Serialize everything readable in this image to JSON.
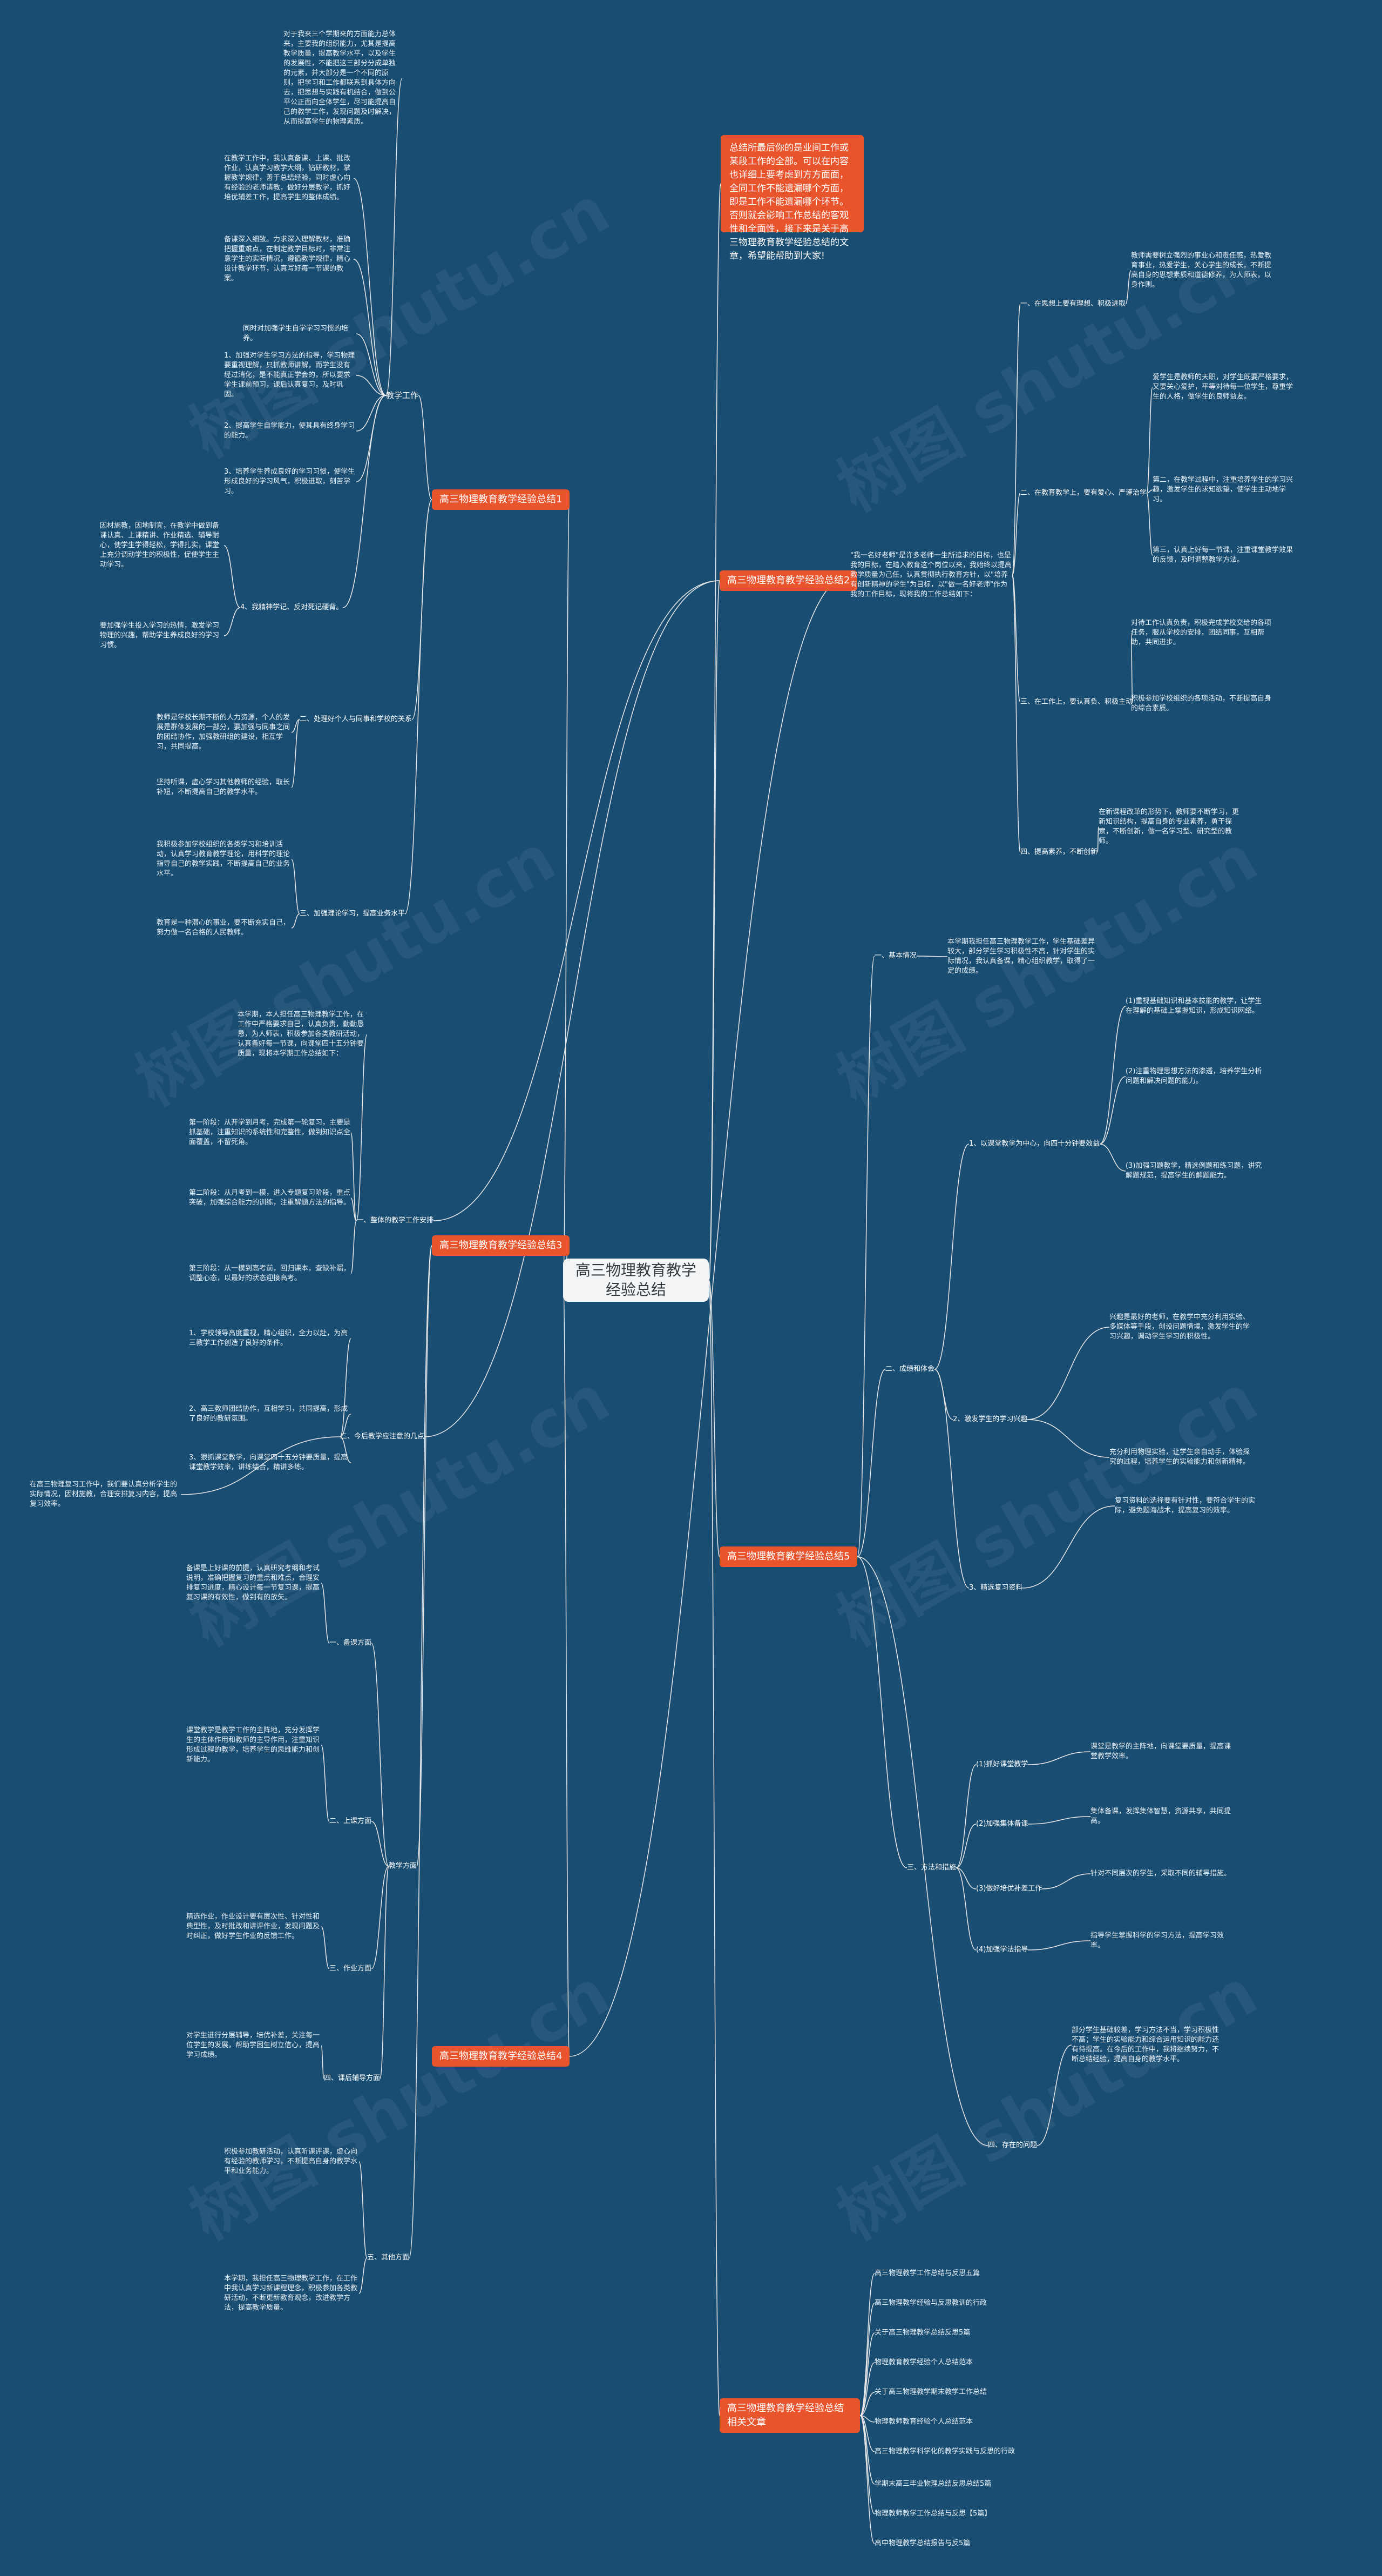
{
  "root": "高三物理教育教学经验总结",
  "watermark": "树图 shutu.cn",
  "callout": "总结所最后你的是业间工作或某段工作的全部。可以在内容也详细上要考虑到方方面面，全同工作不能遗漏哪个方面，即是工作不能遗漏哪个环节。否则就会影响工作总结的客观性和全面性，接下来是关于高三物理教育教学经验总结的文章，希望能帮助到大家!",
  "branches": {
    "b1": "高三物理教育教学经验总结1",
    "b2": "高三物理教育教学经验总结2",
    "b3": "高三物理教育教学经验总结3",
    "b4": "高三物理教育教学经验总结4",
    "b5": "高三物理教育教学经验总结5",
    "b6": "高三物理教育教学经验总结相关文章"
  },
  "b1": {
    "main": "教学工作",
    "intro": "对于我来三个学期来的方面能力总体来，主要我的组织能力，尤其是提高教学质量，提高教学水平，以及学生的发展性，不能把这三部分分成单独的元素，并大部分是一个不同的原则，把学习和工作都联系到具体方向去，把思想与实践有机结合，做到公平公正面向全体学生，尽可能提高自己的教学工作，发现问题及时解决，从而提高学生的物理素质。",
    "para2": "在教学工作中，我认真备课、上课、批改作业，认真学习教学大纲，钻研教材，掌握教学规律，善于总结经验，同时虚心向有经验的老师请教，做好分层教学，抓好培优辅差工作，提高学生的整体成绩。",
    "para3": "备课深入细致。力求深入理解教材，准确把握重难点，在制定教学目标时，非常注意学生的实际情况，遵循教学规律，精心设计教学环节，认真写好每一节课的教案。",
    "title": "同时对加强学生自学学习习惯的培养。",
    "item1": "1、加强对学生学习方法的指导，学习物理要重视理解，只抓教师讲解，而学生没有经过消化，是不能真正学会的，所以要求学生课前预习，课后认真复习，及时巩固。",
    "item2": "2、提高学生自学能力，使其具有终身学习的能力。",
    "item3": "3、培养学生养成良好的学习习惯，使学生形成良好的学习风气，积极进取，刻苦学习。",
    "side1": "因材施教，因地制宜，在教学中做到备课认真、上课精讲、作业精选、辅导耐心，使学生学得轻松，学得扎实，课堂上充分调动学生的积极性，促使学生主动学习。",
    "side2": "要加强学生投入学习的热情，激发学习物理的兴趣，帮助学生养成良好的学习习惯。",
    "note": "4、我精神学记、反对死记硬背。",
    "sub2": "二、处理好个人与同事和学校的关系",
    "sub2a": "教师是学校长期不断的人力资源，个人的发展是群体发展的一部分，要加强与同事之间的团结协作，加强教研组的建设，相互学习，共同提高。",
    "sub2b": "坚持听课，虚心学习其他教师的经验，取长补短，不断提高自己的教学水平。",
    "sub3": "三、加强理论学习，提高业务水平",
    "sub3a": "我积极参加学校组织的各类学习和培训活动，认真学习教育教学理论，用科学的理论指导自己的教学实践，不断提高自己的业务水平。",
    "sub3b": "教育是一种潜心的事业，要不断充实自己，努力做一名合格的人民教师。"
  },
  "b2": {
    "intro": "本学期，本人担任高三物理教学工作，在工作中严格要求自己，认真负责，勤勤恳恳，为人师表，积极参加各类教研活动，认真备好每一节课，向课堂四十五分钟要质量，现将本学期工作总结如下：",
    "sec1": "第一阶段：从开学到月考，完成第一轮复习，主要是抓基础，注重知识的系统性和完整性，做到知识点全面覆盖，不留死角。",
    "sec2": "第二阶段：从月考到一模，进入专题复习阶段，重点突破，加强综合能力的训练，注重解题方法的指导。",
    "sec3": "第三阶段：从一模到高考前，回归课本，查缺补漏，调整心态，以最好的状态迎接高考。",
    "main": "一、整体的教学工作安排",
    "p1": "1、学校领导高度重视，精心组织，全力以赴，为高三教学工作创造了良好的条件。",
    "p2": "2、高三教师团结协作，互相学习，共同提高，形成了良好的教研氛围。",
    "p3": "3、狠抓课堂教学，向课堂四十五分钟要质量，提高课堂教学效率，讲练结合，精讲多练。",
    "main2": "二、今后教学应注意的几点",
    "side": "在高三物理复习工作中，我们要认真分析学生的实际情况，因材施教，合理安排复习内容，提高复习效率。"
  },
  "b3": {
    "sec1": "一、备课方面",
    "sec1a": "备课是上好课的前提，认真研究考纲和考试说明，准确把握复习的重点和难点，合理安排复习进度，精心设计每一节复习课，提高复习课的有效性，做到有的放矢。",
    "sec2": "二、上课方面",
    "sec2a": "课堂教学是教学工作的主阵地，充分发挥学生的主体作用和教师的主导作用，注重知识形成过程的教学，培养学生的思维能力和创新能力。",
    "sec3": "三、作业方面",
    "sec3a": "精选作业，作业设计要有层次性、针对性和典型性，及时批改和讲评作业，发现问题及时纠正，做好学生作业的反馈工作。",
    "sec4": "四、课后辅导方面",
    "sec4a": "对学生进行分层辅导，培优补差，关注每一位学生的发展，帮助学困生树立信心，提高学习成绩。",
    "sec5": "五、其他方面",
    "sec5a": "积极参加教研活动，认真听课评课，虚心向有经验的教师学习，不断提高自身的教学水平和业务能力。",
    "main": "教学方面",
    "side": "本学期，我担任高三物理教学工作，在工作中我认真学习新课程理念，积极参加各类教研活动，不断更新教育观念，改进教学方法，提高教学质量。"
  },
  "b4": {
    "intro": "\"我一名好老师\"是许多老师一生所追求的目标，也是我的目标，在踏入教育这个岗位以来，我始终以提高教学质量为己任，认真贯彻执行教育方针，以\"培养有创新精神的学生\"为目标，以\"做一名好老师\"作为我的工作目标，现将我的工作总结如下：",
    "sec1": "一、在思想上要有理想、积极进取",
    "sec1a": "教师需要树立强烈的事业心和责任感，热爱教育事业，热爱学生，关心学生的成长，不断提高自身的思想素质和道德修养，为人师表，以身作则。",
    "sec2": "二、在教育教学上，要有爱心、严谨治学",
    "sec2a": "爱学生是教师的天职，对学生既要严格要求，又要关心爱护，平等对待每一位学生，尊重学生的人格，做学生的良师益友。",
    "sec2b": "第二，在教学过程中，注重培养学生的学习兴趣，激发学生的求知欲望，使学生主动地学习。",
    "sec2c": "第三，认真上好每一节课，注重课堂教学效果的反馈，及时调整教学方法。",
    "sec3": "三、在工作上，要认真负、积极主动",
    "sec3a": "对待工作认真负责，积极完成学校交给的各项任务，服从学校的安排，团结同事，互相帮助，共同进步。",
    "sec3b": "积极参加学校组织的各项活动，不断提高自身的综合素质。",
    "sec4": "四、提高素养，不断创新",
    "sec4a": "在新课程改革的形势下，教师要不断学习，更新知识结构，提高自身的专业素养，勇于探索，不断创新，做一名学习型、研究型的教师。"
  },
  "b5": {
    "base": "一、基本情况",
    "basea": "本学期我担任高三物理教学工作，学生基础差异较大，部分学生学习积极性不高，针对学生的实际情况，我认真备课，精心组织教学，取得了一定的成绩。",
    "sec1": "1、以课堂教学为中心，向四十分钟要效益",
    "sec1a": "(1)重视基础知识和基本技能的教学，让学生在理解的基础上掌握知识，形成知识网络。",
    "sec1b": "(2)注重物理思想方法的渗透，培养学生分析问题和解决问题的能力。",
    "sec1c": "(3)加强习题教学，精选例题和练习题，讲究解题规范，提高学生的解题能力。",
    "sec2": "2、激发学生的学习兴趣",
    "sec2a": "兴趣是最好的老师，在教学中充分利用实验、多媒体等手段，创设问题情境，激发学生的学习兴趣，调动学生学习的积极性。",
    "sec2b": "充分利用物理实验，让学生亲自动手，体验探究的过程，培养学生的实验能力和创新精神。",
    "sec3": "3、精选复习资料",
    "sec3a": "复习资料的选择要有针对性，要符合学生的实际，避免题海战术，提高复习的效率。",
    "main1": "二、成绩和体会",
    "main2": "三、方法和措施",
    "m1": "(1)抓好课堂教学",
    "m2": "(2)加强集体备课",
    "m3": "(3)做好培优补差工作",
    "m4": "(4)加强学法指导",
    "m1a": "课堂是教学的主阵地，向课堂要质量，提高课堂教学效率。",
    "m2a": "集体备课，发挥集体智慧，资源共享，共同提高。",
    "m3a": "针对不同层次的学生，采取不同的辅导措施。",
    "m4a": "指导学生掌握科学的学习方法，提高学习效率。",
    "last": "四、存在的问题",
    "lasta": "部分学生基础较差，学习方法不当，学习积极性不高；学生的实验能力和综合运用知识的能力还有待提高。在今后的工作中，我将继续努力，不断总结经验，提高自身的教学水平。"
  },
  "b6": {
    "items": [
      "高三物理教学工作总结与反思五篇",
      "高三物理教学经验与反思教训的行政",
      "关于高三物理教学总结反思5篇",
      "物理教育教学经验个人总结范本",
      "关于高三物理教学期末教学工作总结",
      "物理教师教育经验个人总结范本",
      "高三物理教学科学化的教学实践与反思的行政",
      "学期末高三毕业物理总结反思总结5篇",
      "物理教师教学工作总结与反思【5篇】",
      "高中物理教学总结报告与反5篇"
    ]
  },
  "colors": {
    "background": "#1a4d72",
    "branch": "#e8542c",
    "root": "#f2f4f6",
    "link": "#e8e8e8"
  }
}
